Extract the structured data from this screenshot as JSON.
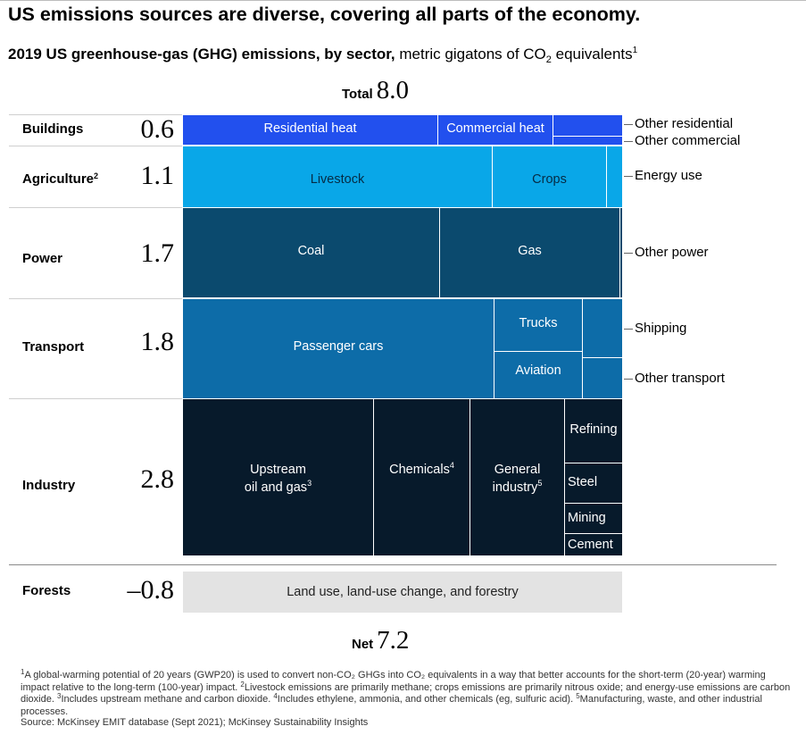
{
  "title": "US emissions sources are diverse, covering all parts of the economy.",
  "subtitle": {
    "bold": "2019 US greenhouse-gas (GHG) emissions, by sector,",
    "rest": " metric gigatons of CO",
    "sub": "2",
    "rest2": " equivalents",
    "sup": "1"
  },
  "total": {
    "label": "Total",
    "value": "8.0"
  },
  "net": {
    "label": "Net",
    "value": "7.2"
  },
  "colors": {
    "buildings": "#2250ee",
    "agriculture": "#09a7e8",
    "power": "#0b4a6e",
    "transport": "#0d6ca8",
    "industry": "#071a2b",
    "forests": "#e3e3e3"
  },
  "chart_data": {
    "type": "treemap",
    "title": "2019 US greenhouse-gas (GHG) emissions, by sector",
    "unit": "metric gigatons of CO2 equivalents",
    "total": 8.0,
    "net": 7.2,
    "sectors": [
      {
        "name": "Buildings",
        "value": 0.6,
        "items": [
          {
            "name": "Residential heat"
          },
          {
            "name": "Commercial heat"
          },
          {
            "name": "Other residential"
          },
          {
            "name": "Other commercial"
          }
        ]
      },
      {
        "name": "Agriculture",
        "value": 1.1,
        "items": [
          {
            "name": "Livestock"
          },
          {
            "name": "Crops"
          },
          {
            "name": "Energy use"
          }
        ]
      },
      {
        "name": "Power",
        "value": 1.7,
        "items": [
          {
            "name": "Coal"
          },
          {
            "name": "Gas"
          },
          {
            "name": "Other power"
          }
        ]
      },
      {
        "name": "Transport",
        "value": 1.8,
        "items": [
          {
            "name": "Passenger cars"
          },
          {
            "name": "Trucks"
          },
          {
            "name": "Aviation"
          },
          {
            "name": "Shipping"
          },
          {
            "name": "Other transport"
          }
        ]
      },
      {
        "name": "Industry",
        "value": 2.8,
        "items": [
          {
            "name": "Upstream oil and gas"
          },
          {
            "name": "Chemicals"
          },
          {
            "name": "General industry"
          },
          {
            "name": "Refining"
          },
          {
            "name": "Steel"
          },
          {
            "name": "Mining"
          },
          {
            "name": "Cement"
          }
        ]
      },
      {
        "name": "Forests",
        "value": -0.8,
        "items": [
          {
            "name": "Land use, land-use change, and forestry"
          }
        ]
      }
    ]
  },
  "labels": {
    "sectors": {
      "buildings": {
        "name": "Buildings",
        "value": "0.6"
      },
      "agriculture": {
        "name": "Agriculture",
        "sup": "2",
        "value": "1.1"
      },
      "power": {
        "name": "Power",
        "value": "1.7"
      },
      "transport": {
        "name": "Transport",
        "value": "1.8"
      },
      "industry": {
        "name": "Industry",
        "value": "2.8"
      },
      "forests": {
        "name": "Forests",
        "value": "–0.8"
      }
    },
    "cells": {
      "residential_heat": "Residential heat",
      "commercial_heat": "Commercial heat",
      "livestock": "Livestock",
      "crops": "Crops",
      "coal": "Coal",
      "gas": "Gas",
      "passenger_cars": "Passenger cars",
      "trucks": "Trucks",
      "aviation": "Aviation",
      "upstream_l1": "Upstream",
      "upstream_l2": "oil and gas",
      "upstream_sup": "3",
      "chemicals": "Chemicals",
      "chemicals_sup": "4",
      "general_l1": "General",
      "general_l2": "industry",
      "general_sup": "5",
      "refining": "Refining",
      "steel": "Steel",
      "mining": "Mining",
      "cement": "Cement",
      "land_use": "Land use, land-use change, and forestry"
    },
    "external": {
      "other_residential": "Other residential",
      "other_commercial": "Other commercial",
      "energy_use": "Energy use",
      "other_power": "Other power",
      "shipping": "Shipping",
      "other_transport": "Other transport"
    }
  },
  "footnotes": {
    "n1_mark": "1",
    "n1": "A global-warming potential of 20 years (GWP20) is used to convert non-CO₂ GHGs into CO₂ equivalents in a way that better accounts for the short-term (20-year) warming impact relative to the long-term (100-year) impact. ",
    "n2_mark": "2",
    "n2": "Livestock emissions are primarily methane; crops emissions are primarily nitrous oxide; and energy-use emissions are carbon dioxide. ",
    "n3_mark": "3",
    "n3": "Includes upstream methane and carbon dioxide. ",
    "n4_mark": "4",
    "n4": "Includes ethylene, ammonia, and other chemicals (eg, sulfuric acid). ",
    "n5_mark": "5",
    "n5": "Manufacturing, waste, and other industrial processes.",
    "source": "Source: McKinsey EMIT database (Sept 2021); McKinsey Sustainability Insights"
  }
}
